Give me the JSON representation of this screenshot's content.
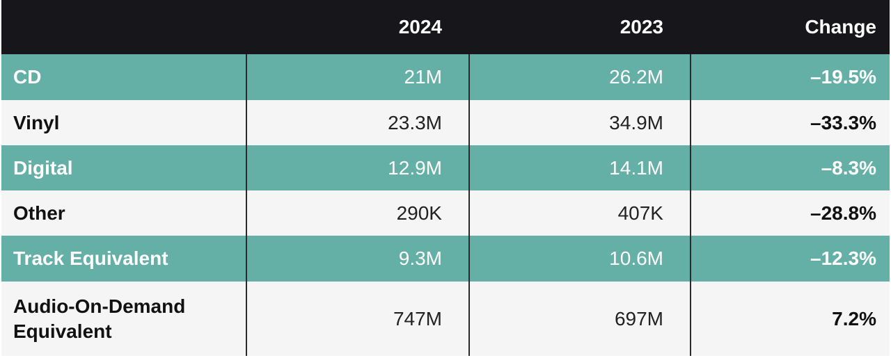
{
  "chart_data": {
    "type": "table",
    "columns": [
      "",
      "2024",
      "2023",
      "Change"
    ],
    "rows": [
      {
        "label": "CD",
        "y2024": "21M",
        "y2023": "26.2M",
        "change": "–19.5%"
      },
      {
        "label": "Vinyl",
        "y2024": "23.3M",
        "y2023": "34.9M",
        "change": "–33.3%"
      },
      {
        "label": "Digital",
        "y2024": "12.9M",
        "y2023": "14.1M",
        "change": "–8.3%"
      },
      {
        "label": "Other",
        "y2024": "290K",
        "y2023": "407K",
        "change": "–28.8%"
      },
      {
        "label": "Track Equivalent",
        "y2024": "9.3M",
        "y2023": "10.6M",
        "change": "–12.3%"
      },
      {
        "label": "Audio-On-Demand Equivalent",
        "y2024": "747M",
        "y2023": "697M",
        "change": "7.2%"
      }
    ]
  },
  "colors": {
    "header_bg": "#16161b",
    "teal_row": "#64afa6",
    "white_row": "#f5f5f5",
    "divider": "#2a2a2a"
  }
}
